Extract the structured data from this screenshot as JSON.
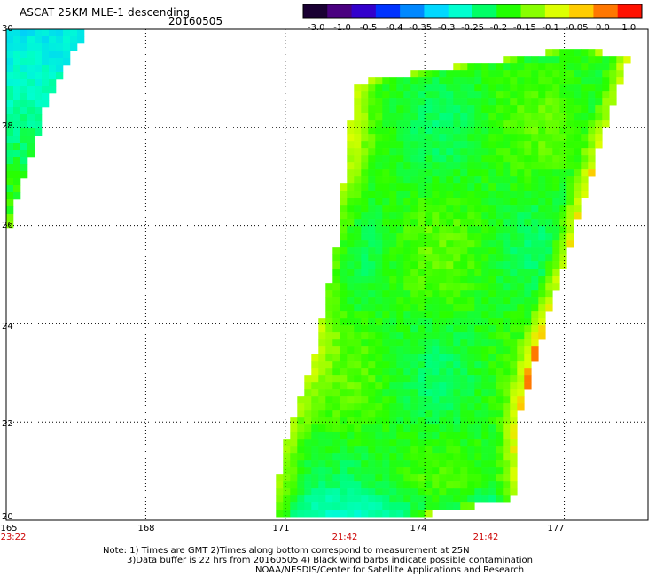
{
  "header": {
    "title": "ASCAT 25KM MLE-1 descending",
    "date": "20160505"
  },
  "colorbar": {
    "tick_labels": [
      "-3.0",
      "-1.0",
      "-0.5",
      "-0.4",
      "-0.35",
      "-0.3",
      "-0.25",
      "-0.2",
      "-0.15",
      "-0.1",
      "-0.05",
      "0.0",
      "1.0"
    ],
    "colors": [
      "#1a0033",
      "#4a0080",
      "#3300cc",
      "#0033ff",
      "#0088ff",
      "#00d8ff",
      "#00ffd0",
      "#00ff66",
      "#22ff00",
      "#88ff00",
      "#ddff00",
      "#ffcc00",
      "#ff7700",
      "#ff1100"
    ]
  },
  "axes": {
    "y_labels": [
      "30",
      "28",
      "26",
      "24",
      "22",
      "20"
    ],
    "x_labels": [
      "165",
      "168",
      "171",
      "174",
      "177"
    ],
    "time_labels": [
      "23:22",
      "21:42",
      "21:42"
    ]
  },
  "notes": {
    "line1": "Note: 1) Times are GMT 2)Times along bottom correspond to measurement at 25N",
    "line2": "3)Data buffer is 22 hrs from 20160505 4) Black wind barbs indicate possible contamination",
    "line3": "NOAA/NESDIS/Center for Satellite Applications and Research"
  },
  "chart_data": {
    "type": "heatmap",
    "title": "ASCAT 25KM MLE-1 descending",
    "subtitle": "20160505",
    "xlim": [
      165,
      178.8
    ],
    "ylim": [
      20,
      30
    ],
    "x_ticks": [
      165,
      168,
      171,
      174,
      177
    ],
    "y_ticks": [
      20,
      22,
      24,
      26,
      28,
      30
    ],
    "grid": true,
    "colorbar_levels": [
      -3.0,
      -1.0,
      -0.5,
      -0.4,
      -0.35,
      -0.3,
      -0.25,
      -0.2,
      -0.15,
      -0.1,
      -0.05,
      0.0,
      1.0
    ],
    "swaths": [
      {
        "time": "23:22",
        "polygon_lonlat": [
          [
            165.0,
            30.0
          ],
          [
            166.8,
            30.0
          ],
          [
            166.4,
            29.5
          ],
          [
            165.9,
            28.6
          ],
          [
            165.7,
            27.8
          ],
          [
            165.4,
            27.1
          ],
          [
            165.1,
            26.0
          ],
          [
            165.0,
            25.9
          ]
        ],
        "typical_value": "-0.3 to -0.25"
      },
      {
        "time": "21:42",
        "polygon_lonlat": [
          [
            172.5,
            28.9
          ],
          [
            177.0,
            29.6
          ],
          [
            177.6,
            29.6
          ],
          [
            178.4,
            29.4
          ],
          [
            177.8,
            27.7
          ],
          [
            176.6,
            24.0
          ],
          [
            176.0,
            22.0
          ],
          [
            175.9,
            20.4
          ],
          [
            173.2,
            20.0
          ],
          [
            170.8,
            20.0
          ],
          [
            170.9,
            21.3
          ],
          [
            171.7,
            23.6
          ],
          [
            172.1,
            25.6
          ]
        ],
        "typical_value": "-0.2 to -0.15"
      }
    ]
  }
}
